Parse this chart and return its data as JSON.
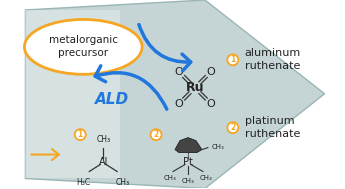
{
  "bg_color": "#ffffff",
  "hex_fill": "#c5d5d5",
  "hex_edge": "#9ab5b5",
  "ellipse_color": "#f5a623",
  "arrow_blue": "#2277dd",
  "gold": "#f5a623",
  "dark": "#222222",
  "text_metalorganic": "metalorganic\nprecursor",
  "text_ald": "ALD",
  "text_aluminum": "aluminum\nruthenate",
  "text_platinum": "platinum\nruthenate",
  "figsize": [
    3.45,
    1.89
  ],
  "dpi": 100
}
